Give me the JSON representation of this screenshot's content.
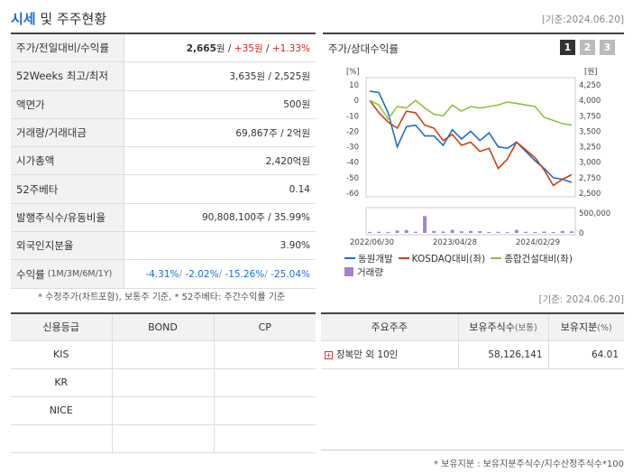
{
  "header": {
    "title_a": "시세",
    "title_b": "및 주주현황",
    "date": "[기준:2024.06.20]"
  },
  "quote_rows": [
    {
      "label": "주가/전일대비/수익률",
      "sub": "",
      "parts": [
        {
          "text": "2,665",
          "cls": "bold"
        },
        {
          "text": "원 / ",
          "cls": ""
        },
        {
          "text": "+35원",
          "cls": "red"
        },
        {
          "text": " / ",
          "cls": ""
        },
        {
          "text": "+1.33%",
          "cls": "red"
        }
      ]
    },
    {
      "label": "52Weeks 최고/최저",
      "sub": "",
      "parts": [
        {
          "text": "3,635원 / 2,525원",
          "cls": ""
        }
      ]
    },
    {
      "label": "액면가",
      "sub": "",
      "parts": [
        {
          "text": "500원",
          "cls": ""
        }
      ]
    },
    {
      "label": "거래량/거래대금",
      "sub": "",
      "parts": [
        {
          "text": "69,867주 / 2억원",
          "cls": ""
        }
      ]
    },
    {
      "label": "시가총액",
      "sub": "",
      "parts": [
        {
          "text": "2,420억원",
          "cls": ""
        }
      ]
    },
    {
      "label": "52주베타",
      "sub": "",
      "parts": [
        {
          "text": "0.14",
          "cls": ""
        }
      ]
    },
    {
      "label": "발행주식수/유동비율",
      "sub": "",
      "parts": [
        {
          "text": "90,808,100주 / 35.99%",
          "cls": ""
        }
      ]
    },
    {
      "label": "외국인지분율",
      "sub": "",
      "parts": [
        {
          "text": "3.90%",
          "cls": ""
        }
      ]
    },
    {
      "label": "수익률",
      "sub": "(1M/3M/6M/1Y)",
      "parts": [
        {
          "text": "-4.31%",
          "cls": "blue"
        },
        {
          "text": "/ ",
          "cls": "gray"
        },
        {
          "text": "-2.02%",
          "cls": "blue"
        },
        {
          "text": "/ ",
          "cls": "gray"
        },
        {
          "text": "-15.26%",
          "cls": "blue"
        },
        {
          "text": "/ ",
          "cls": "gray"
        },
        {
          "text": "-25.04%",
          "cls": "blue"
        }
      ]
    }
  ],
  "footnote1": "* 수정주가(차트포함), 보통주 기준, * 52주베타: 주간수익률 기준",
  "chart_panel": {
    "title": "주가/상대수익률",
    "tabs": [
      "1",
      "2",
      "3"
    ]
  },
  "chart_data": {
    "type": "line",
    "title": "",
    "left_unit": "[%]",
    "right_unit": "[원]",
    "left_ticks": [
      10,
      0,
      -10,
      -20,
      -30,
      -40,
      -50,
      -60
    ],
    "right_ticks": [
      "4,250",
      "4,000",
      "3,750",
      "3,500",
      "3,250",
      "3,000",
      "2,750",
      "2,500"
    ],
    "volume_ticks": [
      "500,000",
      "0"
    ],
    "x_labels": [
      "2022/06/30",
      "2023/04/28",
      "2024/02/29"
    ],
    "ylim": [
      -60,
      10
    ],
    "series": [
      {
        "name": "동원개발",
        "color": "#1a6fd6",
        "values": [
          6,
          5,
          -8,
          -30,
          -17,
          -16,
          -23,
          -23,
          -29,
          -19,
          -25,
          -20,
          -26,
          -21,
          -30,
          -31,
          -27,
          -33,
          -39,
          -44,
          -50,
          -51,
          -53
        ]
      },
      {
        "name": "KOSDAQ대비(좌)",
        "color": "#d04010",
        "values": [
          0,
          -8,
          -14,
          -18,
          -7,
          -8,
          -16,
          -18,
          -26,
          -22,
          -29,
          -27,
          -33,
          -31,
          -44,
          -38,
          -27,
          -32,
          -37,
          -45,
          -55,
          -51,
          -48
        ]
      },
      {
        "name": "종합건설대비(좌)",
        "color": "#8cc63f",
        "values": [
          0,
          -3,
          -12,
          -4,
          -5,
          0,
          -5,
          -9,
          -10,
          -3,
          -7,
          -4,
          -5,
          -4,
          -3,
          -1,
          -2,
          -3,
          -4,
          -11,
          -13,
          -15,
          -16
        ]
      }
    ],
    "volume": {
      "name": "거래량",
      "color": "#a680d8",
      "values": [
        0.05,
        0.06,
        0.05,
        0.12,
        0.14,
        0.06,
        0.85,
        0.1,
        0.07,
        0.15,
        0.08,
        0.1,
        0.09,
        0.05,
        0.06,
        0.04,
        0.15,
        0.06,
        0.05,
        0.07,
        0.05,
        0.1,
        0.08
      ]
    }
  },
  "date2": "[기준: 2024.06.20]",
  "credit": {
    "headers": [
      "신용등급",
      "BOND",
      "CP"
    ],
    "rows": [
      [
        "KIS",
        "",
        ""
      ],
      [
        "KR",
        "",
        ""
      ],
      [
        "NICE",
        "",
        ""
      ],
      [
        "",
        "",
        ""
      ]
    ]
  },
  "holders": {
    "header_main": "주요주주",
    "header_shares": "보유주식수",
    "header_shares_sub": "(보통)",
    "header_ratio": "보유지분",
    "header_ratio_sub": "(%)",
    "rows": [
      {
        "name": "장복만 외 10인",
        "shares": "58,126,141",
        "ratio": "64.01"
      }
    ]
  },
  "footnote2": "* 보유지분 : 보유지분주식수/지수산정주식수*100"
}
